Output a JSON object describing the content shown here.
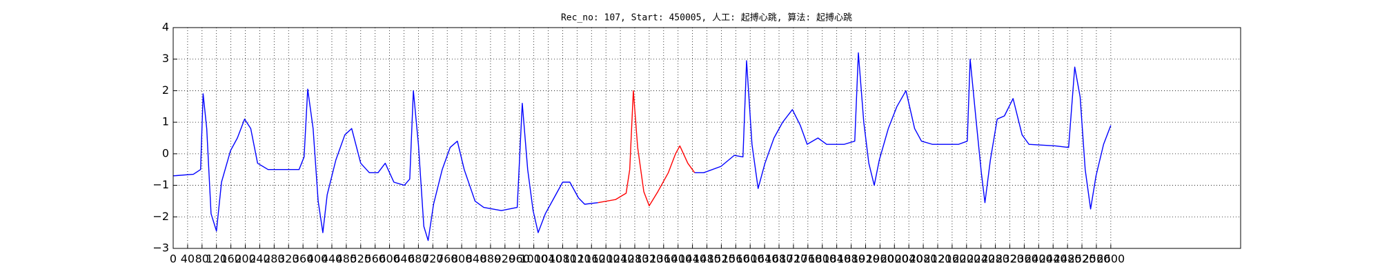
{
  "chart_data": {
    "type": "line",
    "title": "Rec_no: 107, Start: 450005, 人工: 起搏心跳, 算法: 起搏心跳",
    "series": [
      {
        "color": "#0000ff",
        "x": [
          0,
          56,
          76,
          83,
          93,
          105,
          120,
          134,
          159,
          178,
          198,
          215,
          234,
          263,
          349,
          363,
          373,
          388,
          402,
          415,
          427,
          451,
          476,
          495,
          520,
          544,
          568,
          588,
          612,
          641,
          656,
          666,
          680,
          695,
          707,
          722,
          746,
          768,
          788,
          807,
          837,
          861,
          910,
          954,
          968,
          983,
          998,
          1012,
          1032,
          1056,
          1080,
          1100,
          1124,
          1141,
          1178
        ],
        "values": [
          -0.7,
          -0.65,
          -0.5,
          1.9,
          0.8,
          -1.9,
          -2.45,
          -0.9,
          0.1,
          0.5,
          1.1,
          0.8,
          -0.3,
          -0.5,
          -0.5,
          -0.1,
          2.05,
          0.8,
          -1.5,
          -2.5,
          -1.3,
          -0.2,
          0.6,
          0.8,
          -0.3,
          -0.6,
          -0.6,
          -0.3,
          -0.9,
          -1.0,
          -0.8,
          2.0,
          0.3,
          -2.3,
          -2.75,
          -1.6,
          -0.5,
          0.2,
          0.4,
          -0.5,
          -1.5,
          -1.7,
          -1.8,
          -1.7,
          1.6,
          -0.5,
          -1.8,
          -2.5,
          -1.9,
          -1.4,
          -0.9,
          -0.9,
          -1.4,
          -1.6,
          -1.55
        ]
      },
      {
        "color": "#ff0000",
        "x": [
          1178,
          1227,
          1256,
          1266,
          1276,
          1288,
          1305,
          1320,
          1344,
          1373,
          1393,
          1405,
          1427,
          1446
        ],
        "values": [
          -1.55,
          -1.45,
          -1.25,
          -0.5,
          2.0,
          0.2,
          -1.2,
          -1.65,
          -1.2,
          -0.6,
          0.0,
          0.25,
          -0.3,
          -0.6
        ]
      },
      {
        "color": "#0000ff",
        "x": [
          1446,
          1471,
          1519,
          1556,
          1580,
          1590,
          1605,
          1622,
          1641,
          1666,
          1690,
          1717,
          1739,
          1758,
          1788,
          1812,
          1861,
          1890,
          1900,
          1915,
          1929,
          1944,
          1958,
          1983,
          2007,
          2032,
          2056,
          2075,
          2105,
          2178,
          2202,
          2210,
          2227,
          2241,
          2251,
          2266,
          2285,
          2305,
          2329,
          2354,
          2373,
          2446,
          2483,
          2500,
          2515,
          2529,
          2544,
          2559,
          2580,
          2600
        ],
        "values": [
          -0.6,
          -0.6,
          -0.4,
          -0.05,
          -0.1,
          2.95,
          0.3,
          -1.1,
          -0.3,
          0.5,
          1.0,
          1.4,
          0.9,
          0.3,
          0.5,
          0.3,
          0.3,
          0.4,
          3.2,
          1.0,
          -0.3,
          -1.0,
          -0.2,
          0.8,
          1.5,
          2.0,
          0.8,
          0.4,
          0.3,
          0.3,
          0.4,
          3.0,
          1.0,
          -0.6,
          -1.55,
          -0.2,
          1.1,
          1.2,
          1.75,
          0.6,
          0.3,
          0.25,
          0.2,
          2.75,
          1.8,
          -0.5,
          -1.75,
          -0.7,
          0.3,
          0.9
        ]
      }
    ],
    "xlim": [
      0,
      2960
    ],
    "xticks": [
      0,
      40,
      80,
      120,
      160,
      200,
      240,
      280,
      320,
      360,
      400,
      440,
      480,
      520,
      560,
      600,
      640,
      680,
      720,
      760,
      800,
      840,
      880,
      920,
      960,
      1000,
      1040,
      1080,
      1120,
      1160,
      1200,
      1240,
      1280,
      1320,
      1360,
      1400,
      1440,
      1480,
      1520,
      1560,
      1600,
      1640,
      1680,
      1720,
      1760,
      1800,
      1840,
      1880,
      1920,
      1960,
      2000,
      2040,
      2080,
      2120,
      2160,
      2200,
      2240,
      2280,
      2320,
      2360,
      2400,
      2440,
      2480,
      2520,
      2560,
      2600
    ],
    "ylim": [
      -3,
      4
    ],
    "yticks": [
      {
        "value": -3,
        "label": "−3"
      },
      {
        "value": -2,
        "label": "−2"
      },
      {
        "value": -1,
        "label": "−1"
      },
      0,
      1,
      2,
      3,
      4
    ],
    "grid": true
  }
}
